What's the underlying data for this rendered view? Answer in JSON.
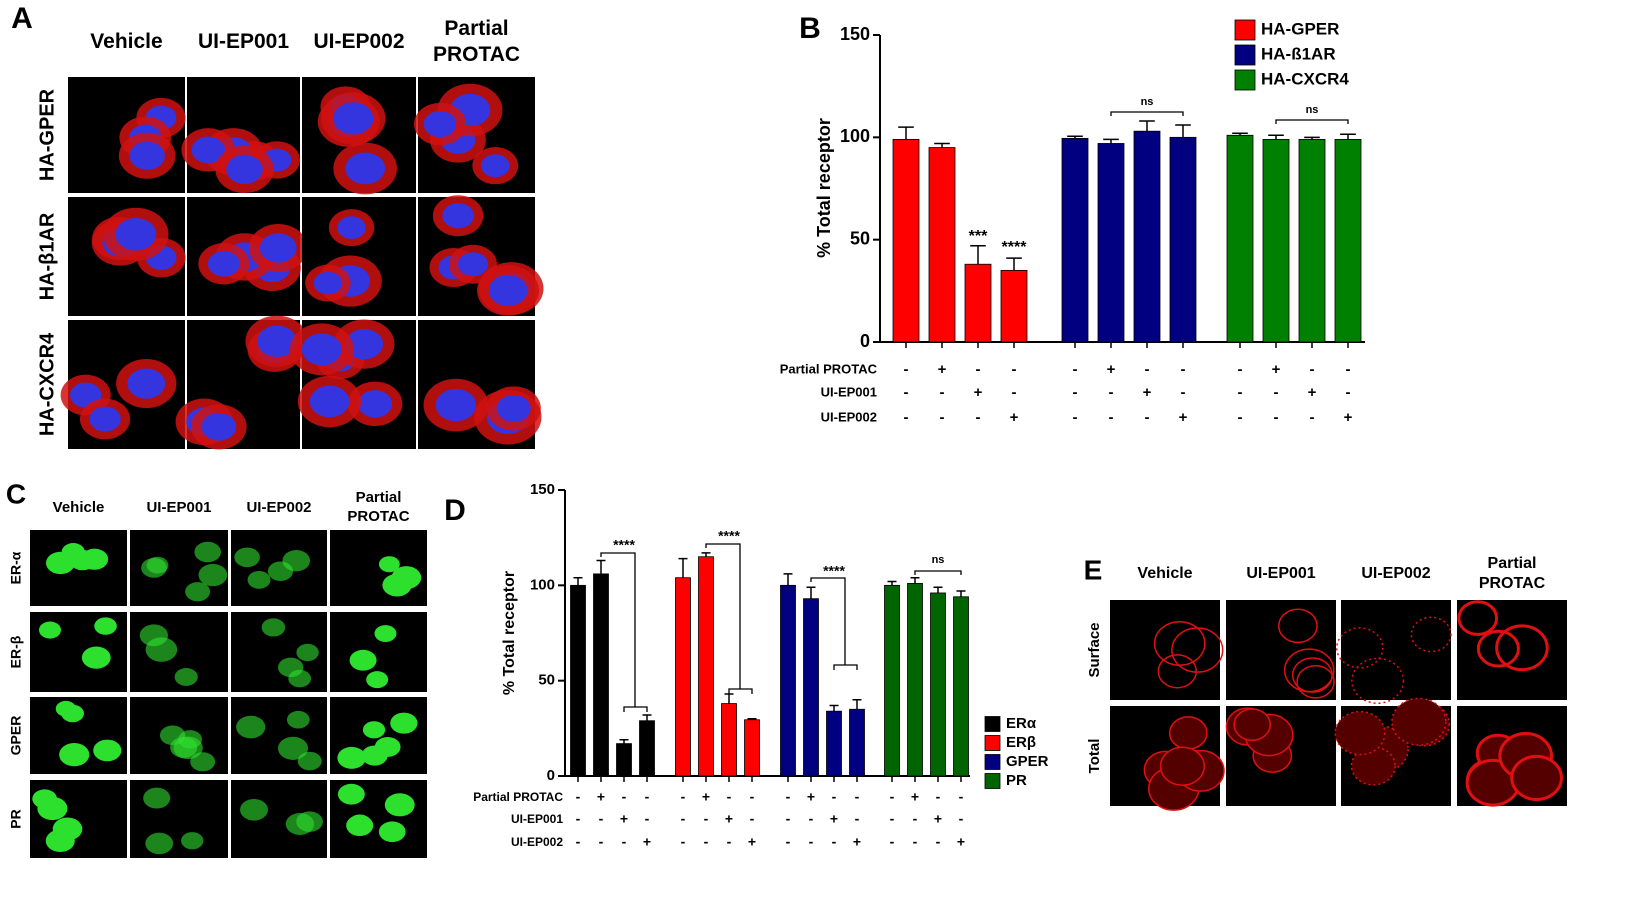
{
  "panels": {
    "A": {
      "label": "A",
      "columns": [
        "Vehicle",
        "UI-EP001",
        "UI-EP002",
        "Partial PROTAC"
      ],
      "rows": [
        "HA-GPER",
        "HA-β1AR",
        "HA-CXCR4"
      ]
    },
    "C": {
      "label": "C",
      "columns": [
        "Vehicle",
        "UI-EP001",
        "UI-EP002",
        "Partial PROTAC"
      ],
      "rows": [
        "ER-α",
        "ER-β",
        "GPER",
        "PR"
      ]
    },
    "E": {
      "label": "E",
      "columns": [
        "Vehicle",
        "UI-EP001",
        "UI-EP002",
        "Partial PROTAC"
      ],
      "rows": [
        "Surface",
        "Total"
      ]
    }
  },
  "chart_data": [
    {
      "type": "bar",
      "label": "B",
      "ylabel": "% Total receptor",
      "ylim": [
        0,
        150
      ],
      "yticks": [
        0,
        50,
        100,
        150
      ],
      "series": [
        {
          "name": "HA-GPER",
          "color": "#ff0000",
          "values": [
            99,
            95,
            38,
            35
          ],
          "errors": [
            6,
            2,
            9,
            6
          ]
        },
        {
          "name": "HA-ß1AR",
          "color": "#000080",
          "values": [
            99.5,
            97,
            103,
            100
          ],
          "errors": [
            1,
            2,
            5,
            6
          ]
        },
        {
          "name": "HA-CXCR4",
          "color": "#008000",
          "values": [
            101,
            99,
            99,
            99
          ],
          "errors": [
            1,
            2,
            1,
            2.5
          ]
        }
      ],
      "treatments": [
        {
          "name": "Partial PROTAC",
          "signs": [
            "-",
            "+",
            "-",
            "-",
            "-",
            "+",
            "-",
            "-",
            "-",
            "+",
            "-",
            "-"
          ]
        },
        {
          "name": "UI-EP001",
          "signs": [
            "-",
            "-",
            "+",
            "-",
            "-",
            "-",
            "+",
            "-",
            "-",
            "-",
            "+",
            "-"
          ]
        },
        {
          "name": "UI-EP002",
          "signs": [
            "-",
            "-",
            "-",
            "+",
            "-",
            "-",
            "-",
            "+",
            "-",
            "-",
            "-",
            "+"
          ]
        }
      ],
      "annotations": [
        "***",
        "****",
        "ns",
        "ns"
      ]
    },
    {
      "type": "bar",
      "label": "D",
      "ylabel": "% Total receptor",
      "ylim": [
        0,
        150
      ],
      "yticks": [
        0,
        50,
        100,
        150
      ],
      "series": [
        {
          "name": "ERα",
          "color": "#000000",
          "values": [
            100,
            106,
            17,
            29
          ],
          "errors": [
            4,
            7,
            2,
            3
          ]
        },
        {
          "name": "ERβ",
          "color": "#ff0000",
          "values": [
            104,
            115,
            38,
            29.5
          ],
          "errors": [
            10,
            2,
            5,
            0.5
          ]
        },
        {
          "name": "GPER",
          "color": "#000080",
          "values": [
            100,
            93,
            34,
            35
          ],
          "errors": [
            6,
            6,
            3,
            5
          ]
        },
        {
          "name": "PR",
          "color": "#006400",
          "values": [
            100,
            101,
            96,
            94
          ],
          "errors": [
            2,
            3,
            3,
            3
          ]
        }
      ],
      "treatments": [
        {
          "name": "Partial PROTAC",
          "signs": [
            "-",
            "+",
            "-",
            "-",
            "-",
            "+",
            "-",
            "-",
            "-",
            "+",
            "-",
            "-",
            "-",
            "+",
            "-",
            "-"
          ]
        },
        {
          "name": "UI-EP001",
          "signs": [
            "-",
            "-",
            "+",
            "-",
            "-",
            "-",
            "+",
            "-",
            "-",
            "-",
            "+",
            "-",
            "-",
            "-",
            "+",
            "-"
          ]
        },
        {
          "name": "UI-EP002",
          "signs": [
            "-",
            "-",
            "-",
            "+",
            "-",
            "-",
            "-",
            "+",
            "-",
            "-",
            "-",
            "+",
            "-",
            "-",
            "-",
            "+"
          ]
        }
      ],
      "annotations": [
        "****",
        "****",
        "****",
        "ns"
      ]
    }
  ]
}
